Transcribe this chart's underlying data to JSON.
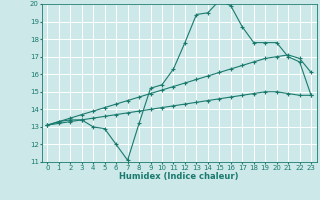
{
  "xlabel": "Humidex (Indice chaleur)",
  "bg_color": "#cce8e8",
  "grid_color": "#ffffff",
  "line_color": "#1a7a6e",
  "xlim": [
    -0.5,
    23.5
  ],
  "ylim": [
    11,
    20
  ],
  "xticks": [
    0,
    1,
    2,
    3,
    4,
    5,
    6,
    7,
    8,
    9,
    10,
    11,
    12,
    13,
    14,
    15,
    16,
    17,
    18,
    19,
    20,
    21,
    22,
    23
  ],
  "yticks": [
    11,
    12,
    13,
    14,
    15,
    16,
    17,
    18,
    19,
    20
  ],
  "line1_x": [
    0,
    1,
    2,
    3,
    4,
    5,
    6,
    7,
    8,
    9,
    10,
    11,
    12,
    13,
    14,
    15,
    16,
    17,
    18,
    19,
    20,
    21,
    22,
    23
  ],
  "line1_y": [
    13.1,
    13.3,
    13.4,
    13.4,
    13.0,
    12.9,
    12.0,
    11.1,
    13.2,
    15.2,
    15.4,
    16.3,
    17.8,
    19.4,
    19.5,
    20.2,
    19.9,
    18.7,
    17.8,
    17.8,
    17.8,
    17.0,
    16.7,
    14.8
  ],
  "line2_x": [
    0,
    1,
    2,
    3,
    4,
    5,
    6,
    7,
    8,
    9,
    10,
    11,
    12,
    13,
    14,
    15,
    16,
    17,
    18,
    19,
    20,
    21,
    22,
    23
  ],
  "line2_y": [
    13.1,
    13.3,
    13.5,
    13.7,
    13.9,
    14.1,
    14.3,
    14.5,
    14.7,
    14.9,
    15.1,
    15.3,
    15.5,
    15.7,
    15.9,
    16.1,
    16.3,
    16.5,
    16.7,
    16.9,
    17.0,
    17.1,
    16.9,
    16.1
  ],
  "line3_x": [
    0,
    1,
    2,
    3,
    4,
    5,
    6,
    7,
    8,
    9,
    10,
    11,
    12,
    13,
    14,
    15,
    16,
    17,
    18,
    19,
    20,
    21,
    22,
    23
  ],
  "line3_y": [
    13.1,
    13.2,
    13.3,
    13.4,
    13.5,
    13.6,
    13.7,
    13.8,
    13.9,
    14.0,
    14.1,
    14.2,
    14.3,
    14.4,
    14.5,
    14.6,
    14.7,
    14.8,
    14.9,
    15.0,
    15.0,
    14.9,
    14.8,
    14.8
  ],
  "tick_fontsize": 5,
  "xlabel_fontsize": 6
}
